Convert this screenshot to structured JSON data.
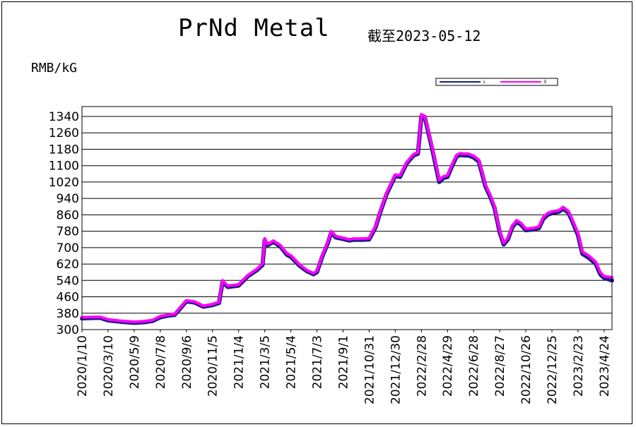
{
  "header": {
    "title": "PrNd Metal",
    "subtitle": "截至2023-05-12",
    "unit": "RMB/kG"
  },
  "chart_data": {
    "type": "line",
    "title": "PrNd Metal",
    "subtitle": "截至2023-05-12",
    "ylabel": "RMB/kG",
    "ylim": [
      300,
      1380
    ],
    "yticks": [
      300,
      380,
      460,
      540,
      620,
      700,
      780,
      860,
      940,
      1020,
      1100,
      1180,
      1260,
      1340
    ],
    "grid": true,
    "legend": "top-right",
    "x_start": "2020-01-10",
    "x_end": "2023-05-12",
    "xticks": [
      "2020/1/10",
      "2020/3/10",
      "2020/5/9",
      "2020/7/8",
      "2020/9/6",
      "2020/11/5",
      "2021/1/4",
      "2021/3/5",
      "2021/5/4",
      "2021/7/3",
      "2021/9/1",
      "2021/10/31",
      "2021/12/30",
      "2022/2/28",
      "2022/4/29",
      "2022/6/28",
      "2022/8/27",
      "2022/10/26",
      "2022/12/25",
      "2023/2/23",
      "2023/4/24"
    ],
    "series": [
      {
        "name": "L",
        "color": "#1c1c80",
        "x": [
          "2020-01-10",
          "2020-02-20",
          "2020-03-10",
          "2020-04-10",
          "2020-05-09",
          "2020-06-01",
          "2020-06-20",
          "2020-07-08",
          "2020-07-25",
          "2020-08-10",
          "2020-09-06",
          "2020-09-25",
          "2020-10-15",
          "2020-11-05",
          "2020-11-20",
          "2020-11-28",
          "2020-12-10",
          "2021-01-04",
          "2021-01-25",
          "2021-02-15",
          "2021-02-28",
          "2021-03-05",
          "2021-03-12",
          "2021-03-25",
          "2021-04-10",
          "2021-04-25",
          "2021-05-04",
          "2021-05-25",
          "2021-06-10",
          "2021-06-25",
          "2021-07-03",
          "2021-07-15",
          "2021-07-28",
          "2021-08-05",
          "2021-08-15",
          "2021-09-01",
          "2021-09-15",
          "2021-09-25",
          "2021-10-15",
          "2021-10-31",
          "2021-11-15",
          "2021-11-25",
          "2021-12-10",
          "2021-12-30",
          "2022-01-10",
          "2022-01-25",
          "2022-02-10",
          "2022-02-20",
          "2022-02-28",
          "2022-03-08",
          "2022-03-25",
          "2022-04-10",
          "2022-04-20",
          "2022-04-29",
          "2022-05-10",
          "2022-05-20",
          "2022-05-28",
          "2022-06-05",
          "2022-06-15",
          "2022-06-28",
          "2022-07-10",
          "2022-07-25",
          "2022-08-05",
          "2022-08-15",
          "2022-08-27",
          "2022-09-05",
          "2022-09-15",
          "2022-09-25",
          "2022-10-05",
          "2022-10-15",
          "2022-10-26",
          "2022-11-10",
          "2022-11-25",
          "2022-12-05",
          "2022-12-15",
          "2022-12-25",
          "2023-01-10",
          "2023-01-20",
          "2023-02-01",
          "2023-02-10",
          "2023-02-23",
          "2023-03-05",
          "2023-03-20",
          "2023-04-05",
          "2023-04-15",
          "2023-04-24",
          "2023-05-12"
        ],
        "values": [
          355,
          358,
          345,
          338,
          333,
          336,
          342,
          360,
          368,
          372,
          438,
          432,
          412,
          420,
          430,
          532,
          508,
          515,
          560,
          590,
          615,
          735,
          712,
          728,
          705,
          665,
          655,
          610,
          585,
          570,
          580,
          655,
          722,
          775,
          750,
          742,
          735,
          738,
          738,
          740,
          800,
          870,
          960,
          1050,
          1045,
          1110,
          1150,
          1158,
          1340,
          1335,
          1180,
          1020,
          1040,
          1045,
          1100,
          1145,
          1152,
          1150,
          1150,
          1140,
          1120,
          1000,
          950,
          895,
          775,
          715,
          740,
          800,
          825,
          812,
          785,
          788,
          795,
          840,
          860,
          868,
          875,
          890,
          870,
          828,
          760,
          670,
          650,
          620,
          570,
          552,
          540
        ]
      },
      {
        "name": "E",
        "color": "#ff00ff",
        "x": [
          "2020-01-10",
          "2020-02-20",
          "2020-03-10",
          "2020-04-10",
          "2020-05-09",
          "2020-06-01",
          "2020-06-20",
          "2020-07-08",
          "2020-07-25",
          "2020-08-10",
          "2020-09-06",
          "2020-09-25",
          "2020-10-15",
          "2020-11-05",
          "2020-11-20",
          "2020-11-28",
          "2020-12-10",
          "2021-01-04",
          "2021-01-25",
          "2021-02-15",
          "2021-02-28",
          "2021-03-05",
          "2021-03-12",
          "2021-03-25",
          "2021-04-10",
          "2021-04-25",
          "2021-05-04",
          "2021-05-25",
          "2021-06-10",
          "2021-06-25",
          "2021-07-03",
          "2021-07-15",
          "2021-07-28",
          "2021-08-05",
          "2021-08-15",
          "2021-09-01",
          "2021-09-15",
          "2021-09-25",
          "2021-10-15",
          "2021-10-31",
          "2021-11-15",
          "2021-11-25",
          "2021-12-10",
          "2021-12-30",
          "2022-01-10",
          "2022-01-25",
          "2022-02-10",
          "2022-02-20",
          "2022-02-28",
          "2022-03-08",
          "2022-03-25",
          "2022-04-10",
          "2022-04-20",
          "2022-04-29",
          "2022-05-10",
          "2022-05-20",
          "2022-05-28",
          "2022-06-05",
          "2022-06-15",
          "2022-06-28",
          "2022-07-10",
          "2022-07-25",
          "2022-08-05",
          "2022-08-15",
          "2022-08-27",
          "2022-09-05",
          "2022-09-15",
          "2022-09-25",
          "2022-10-05",
          "2022-10-15",
          "2022-10-26",
          "2022-11-10",
          "2022-11-25",
          "2022-12-05",
          "2022-12-15",
          "2022-12-25",
          "2023-01-10",
          "2023-01-20",
          "2023-02-01",
          "2023-02-10",
          "2023-02-23",
          "2023-03-05",
          "2023-03-20",
          "2023-04-05",
          "2023-04-15",
          "2023-04-24",
          "2023-05-12"
        ],
        "values": [
          360,
          362,
          350,
          342,
          338,
          341,
          346,
          365,
          372,
          376,
          442,
          436,
          416,
          424,
          435,
          540,
          514,
          520,
          565,
          595,
          622,
          745,
          718,
          734,
          712,
          672,
          662,
          616,
          590,
          575,
          586,
          660,
          728,
          780,
          756,
          748,
          740,
          744,
          744,
          746,
          806,
          876,
          966,
          1056,
          1052,
          1116,
          1156,
          1164,
          1350,
          1342,
          1190,
          1030,
          1048,
          1052,
          1108,
          1152,
          1160,
          1158,
          1158,
          1148,
          1128,
          1008,
          958,
          902,
          782,
          722,
          748,
          808,
          833,
          820,
          792,
          795,
          802,
          848,
          868,
          876,
          882,
          898,
          878,
          836,
          770,
          680,
          660,
          630,
          580,
          560,
          555
        ]
      }
    ]
  }
}
